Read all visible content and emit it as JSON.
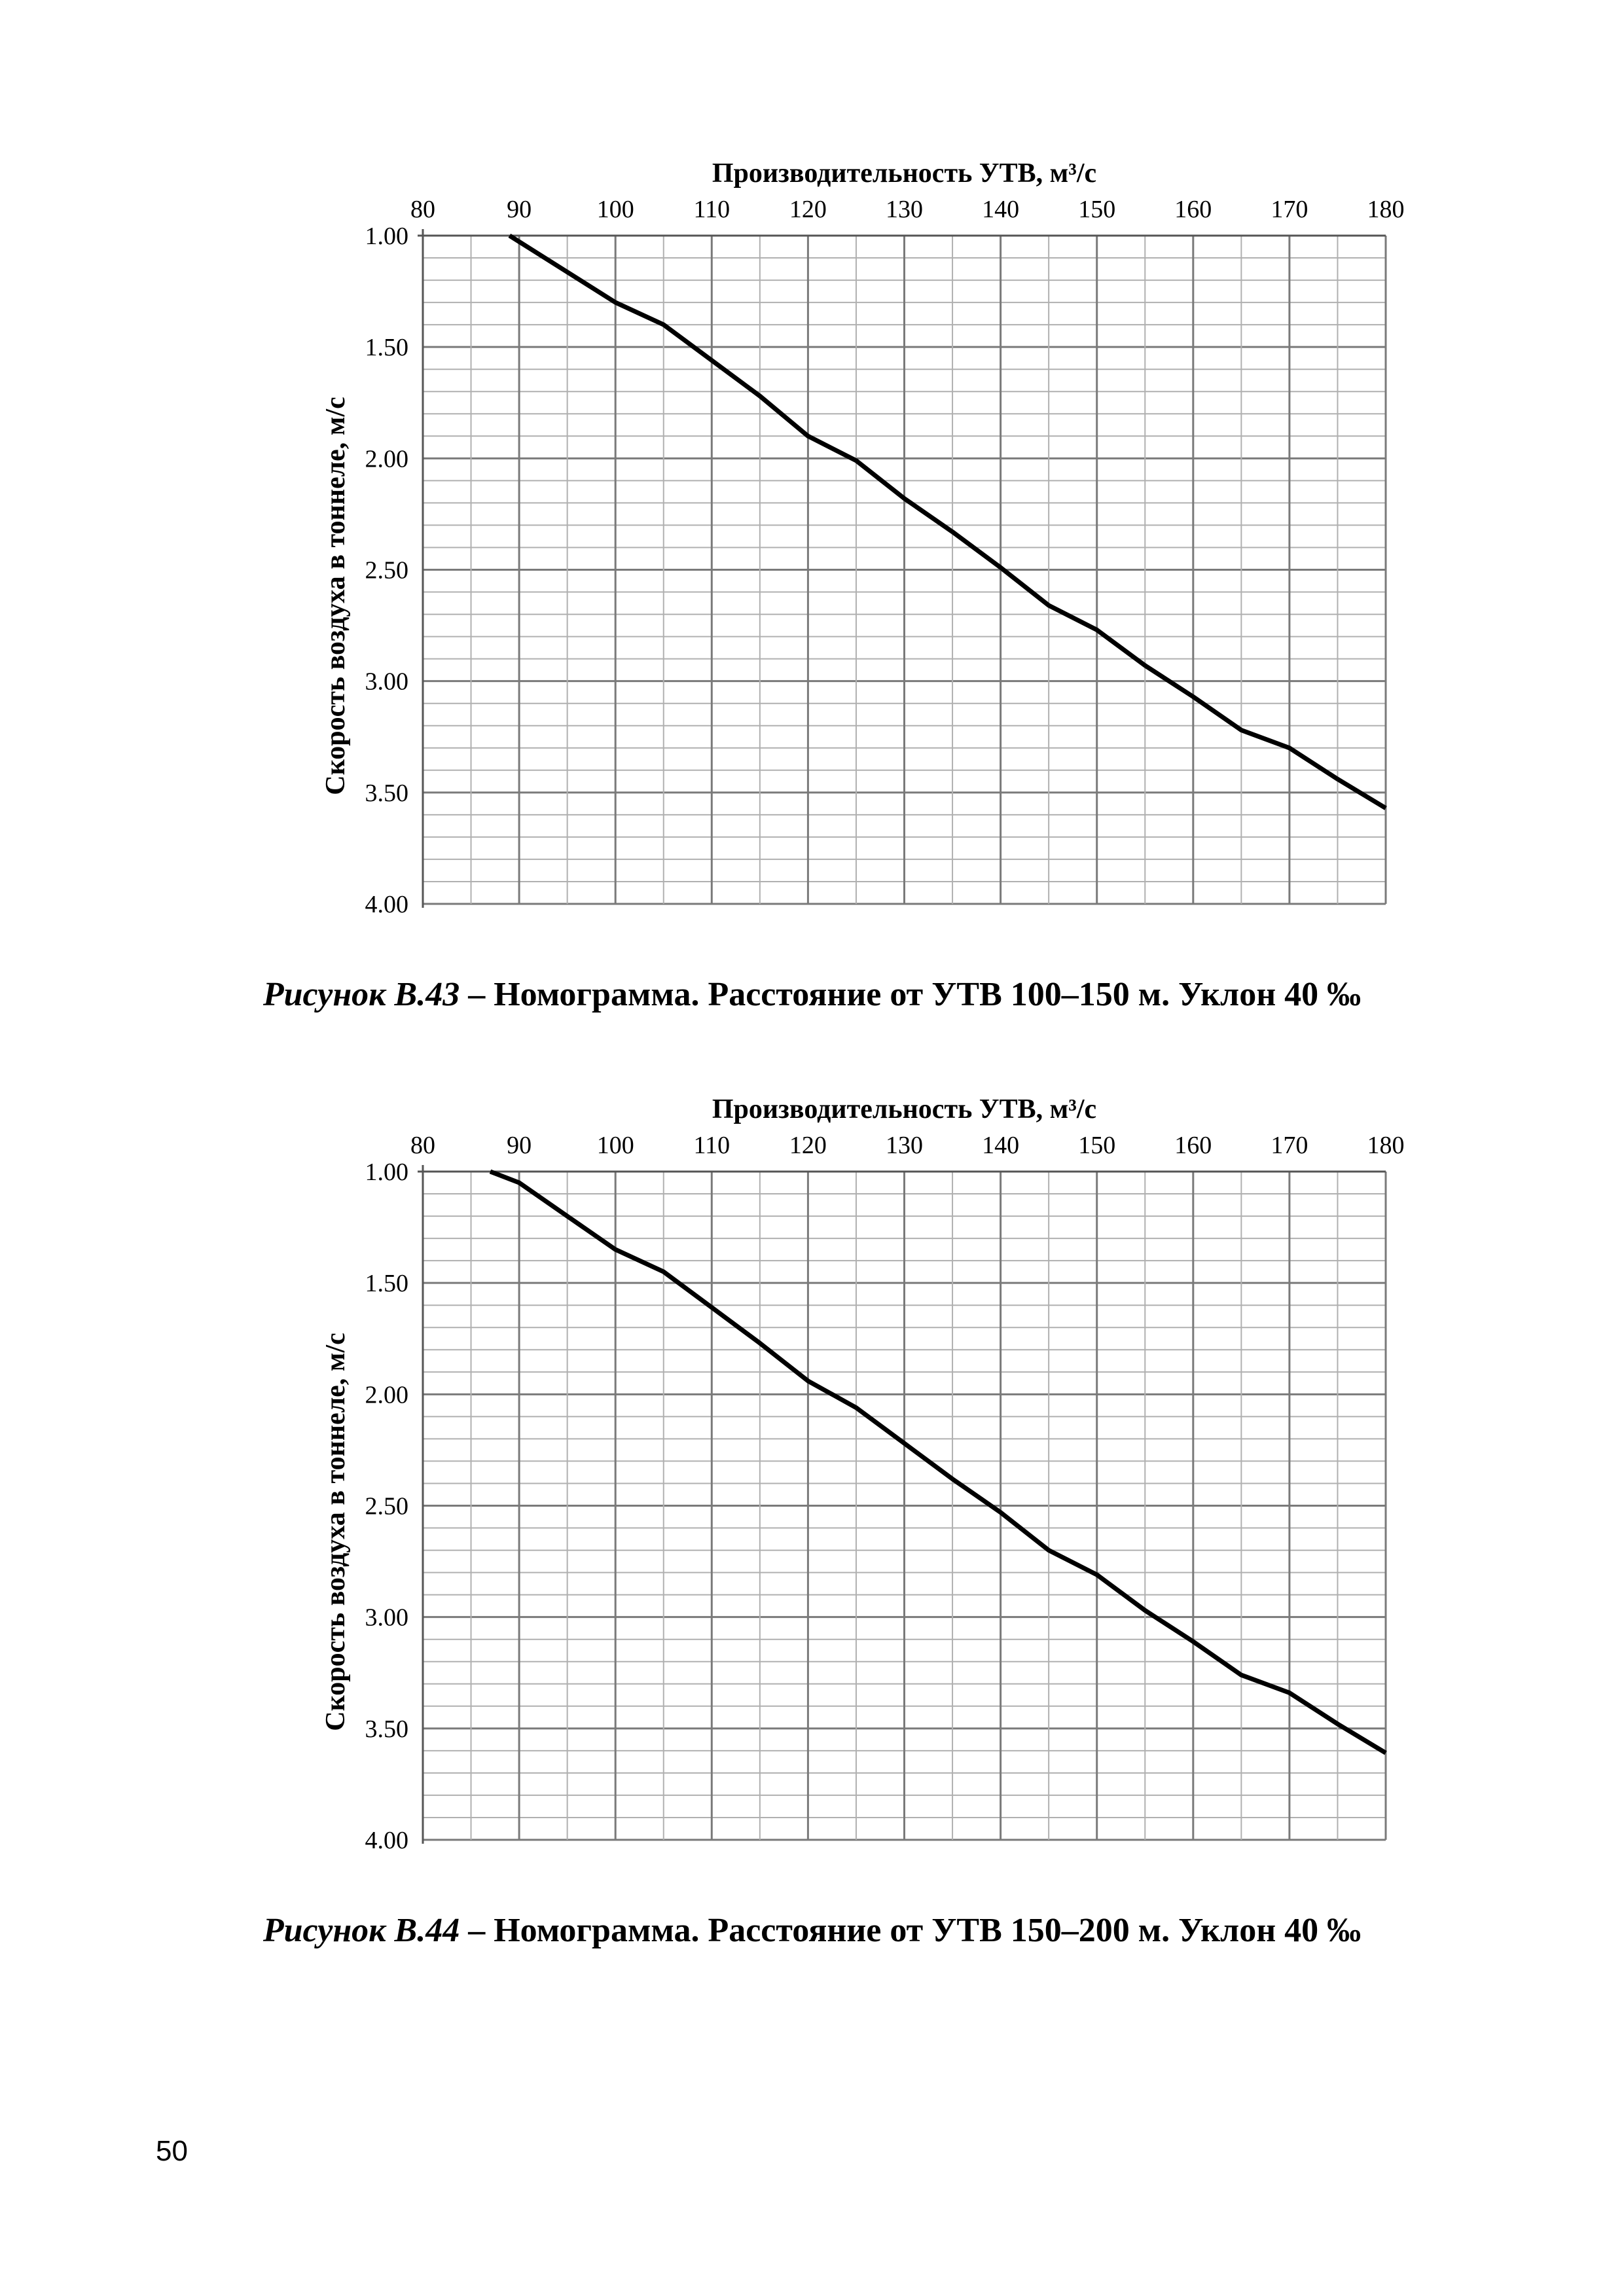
{
  "page_number": "50",
  "figures": [
    {
      "label": "Рисунок В.43",
      "caption": " – Номограмма. Расстояние от УТВ 100–150 м. Уклон 40 ‰"
    },
    {
      "label": "Рисунок В.44",
      "caption": " – Номограмма. Расстояние от УТВ 150–200 м. Уклон 40 ‰"
    }
  ],
  "chart_data": [
    {
      "type": "line",
      "title": "",
      "xlabel": "Производительность УТВ, м³/с",
      "ylabel": "Скорость воздуха в тоннеле, м/с",
      "xlim": [
        80,
        180
      ],
      "ylim": [
        1.0,
        4.0
      ],
      "y_inverted": true,
      "x_axis_position": "top",
      "xticks": [
        "80",
        "90",
        "100",
        "110",
        "120",
        "130",
        "140",
        "150",
        "160",
        "170",
        "180"
      ],
      "yticks": [
        "1.00",
        "1.50",
        "2.00",
        "2.50",
        "3.00",
        "3.50",
        "4.00"
      ],
      "grid": true,
      "series": [
        {
          "name": "",
          "color": "#000000",
          "x": [
            89,
            100,
            105,
            110,
            115,
            120,
            125,
            130,
            135,
            140,
            145,
            150,
            155,
            160,
            165,
            170,
            175,
            180
          ],
          "y": [
            1.0,
            1.3,
            1.4,
            1.56,
            1.72,
            1.9,
            2.01,
            2.18,
            2.33,
            2.49,
            2.66,
            2.77,
            2.93,
            3.07,
            3.22,
            3.3,
            3.44,
            3.57
          ]
        }
      ]
    },
    {
      "type": "line",
      "title": "",
      "xlabel": "Производительность УТВ, м³/с",
      "ylabel": "Скорость воздуха в тоннеле, м/с",
      "xlim": [
        80,
        180
      ],
      "ylim": [
        1.0,
        4.0
      ],
      "y_inverted": true,
      "x_axis_position": "top",
      "xticks": [
        "80",
        "90",
        "100",
        "110",
        "120",
        "130",
        "140",
        "150",
        "160",
        "170",
        "180"
      ],
      "yticks": [
        "1.00",
        "1.50",
        "2.00",
        "2.50",
        "3.00",
        "3.50",
        "4.00"
      ],
      "grid": true,
      "series": [
        {
          "name": "",
          "color": "#000000",
          "x": [
            87,
            90,
            95,
            100,
            105,
            110,
            115,
            120,
            125,
            130,
            135,
            140,
            145,
            150,
            155,
            160,
            165,
            170,
            175,
            180
          ],
          "y": [
            1.0,
            1.05,
            1.2,
            1.35,
            1.45,
            1.61,
            1.77,
            1.94,
            2.06,
            2.22,
            2.38,
            2.53,
            2.7,
            2.81,
            2.97,
            3.11,
            3.26,
            3.34,
            3.48,
            3.61
          ]
        }
      ]
    }
  ]
}
